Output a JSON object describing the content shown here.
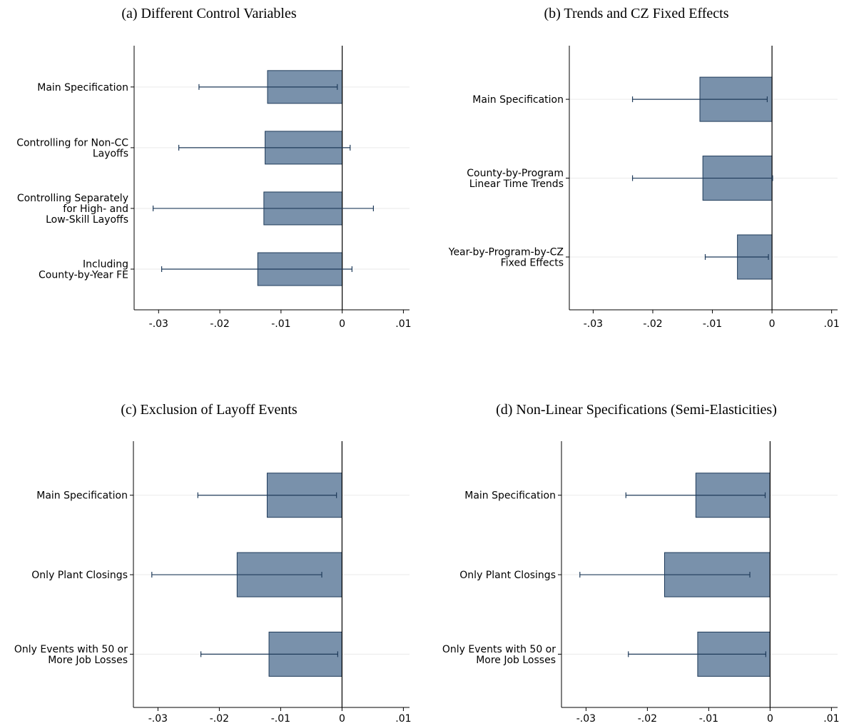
{
  "chart_data": [
    {
      "type": "bar",
      "orientation": "horizontal",
      "title": "(a) Different Control Variables",
      "categories": [
        [
          "Main Specification"
        ],
        [
          "Controlling for Non-CC",
          "Layoffs"
        ],
        [
          "Controlling Separately",
          "for High- and",
          "Low-Skill Layoffs"
        ],
        [
          "Including",
          "County-by-Year FE"
        ]
      ],
      "values": [
        -0.0122,
        -0.0126,
        -0.0128,
        -0.0138
      ],
      "ci_low": [
        -0.0234,
        -0.0267,
        -0.0309,
        -0.0295
      ],
      "ci_high": [
        -0.0008,
        0.0013,
        0.0051,
        0.0016
      ],
      "xlim": [
        -0.034,
        0.011
      ],
      "xticks": [
        -0.03,
        -0.02,
        -0.01,
        0,
        0.01
      ],
      "xtick_labels": [
        "-.03",
        "-.02",
        "-.01",
        "0",
        ".01"
      ],
      "xlabel": "",
      "ylabel": "",
      "grid": true
    },
    {
      "type": "bar",
      "orientation": "horizontal",
      "title": "(b) Trends and CZ Fixed Effects",
      "categories": [
        [
          "Main Specification"
        ],
        [
          "County-by-Program",
          "Linear Time Trends"
        ],
        [
          "Year-by-Program-by-CZ",
          "Fixed Effects"
        ]
      ],
      "values": [
        -0.0121,
        -0.0116,
        -0.0058
      ],
      "ci_low": [
        -0.0234,
        -0.0234,
        -0.0112
      ],
      "ci_high": [
        -0.0008,
        0.0001,
        -0.0006
      ],
      "xlim": [
        -0.034,
        0.011
      ],
      "xticks": [
        -0.03,
        -0.02,
        -0.01,
        0,
        0.01
      ],
      "xtick_labels": [
        "-.03",
        "-.02",
        "-.01",
        "0",
        ".01"
      ],
      "xlabel": "",
      "ylabel": "",
      "grid": true
    },
    {
      "type": "bar",
      "orientation": "horizontal",
      "title": "(c) Exclusion of Layoff Events",
      "categories": [
        [
          "Main Specification"
        ],
        [
          "Only Plant Closings"
        ],
        [
          "Only Events with 50 or",
          "More Job Losses"
        ]
      ],
      "values": [
        -0.0122,
        -0.0171,
        -0.0119
      ],
      "ci_low": [
        -0.0235,
        -0.031,
        -0.023
      ],
      "ci_high": [
        -0.0009,
        -0.0033,
        -0.0007
      ],
      "xlim": [
        -0.034,
        0.011
      ],
      "xticks": [
        -0.03,
        -0.02,
        -0.01,
        0,
        0.01
      ],
      "xtick_labels": [
        "-.03",
        "-.02",
        "-.01",
        "0",
        ".01"
      ],
      "xlabel": "",
      "ylabel": "",
      "grid": true
    },
    {
      "type": "bar",
      "orientation": "horizontal",
      "title": "(d) Non-Linear Specifications (Semi-Elasticities)",
      "categories": [
        [
          "Main Specification"
        ],
        [
          "Only Plant Closings"
        ],
        [
          "Only Events with 50 or",
          "More Job Losses"
        ]
      ],
      "values": [
        -0.0121,
        -0.0172,
        -0.0118
      ],
      "ci_low": [
        -0.0235,
        -0.031,
        -0.0231
      ],
      "ci_high": [
        -0.0008,
        -0.0033,
        -0.0007
      ],
      "xlim": [
        -0.034,
        0.011
      ],
      "xticks": [
        -0.03,
        -0.02,
        -0.01,
        0,
        0.01
      ],
      "xtick_labels": [
        "-.03",
        "-.02",
        "-.01",
        "0",
        ".01"
      ],
      "xlabel": "",
      "ylabel": "",
      "grid": true
    }
  ],
  "colors": {
    "bar_fill": "#7991ab",
    "bar_edge": "#1f3b5a",
    "error_bar": "#1f3b5a",
    "axis": "#000000",
    "grid": "#eaeaea",
    "zero_line": "#000000"
  }
}
